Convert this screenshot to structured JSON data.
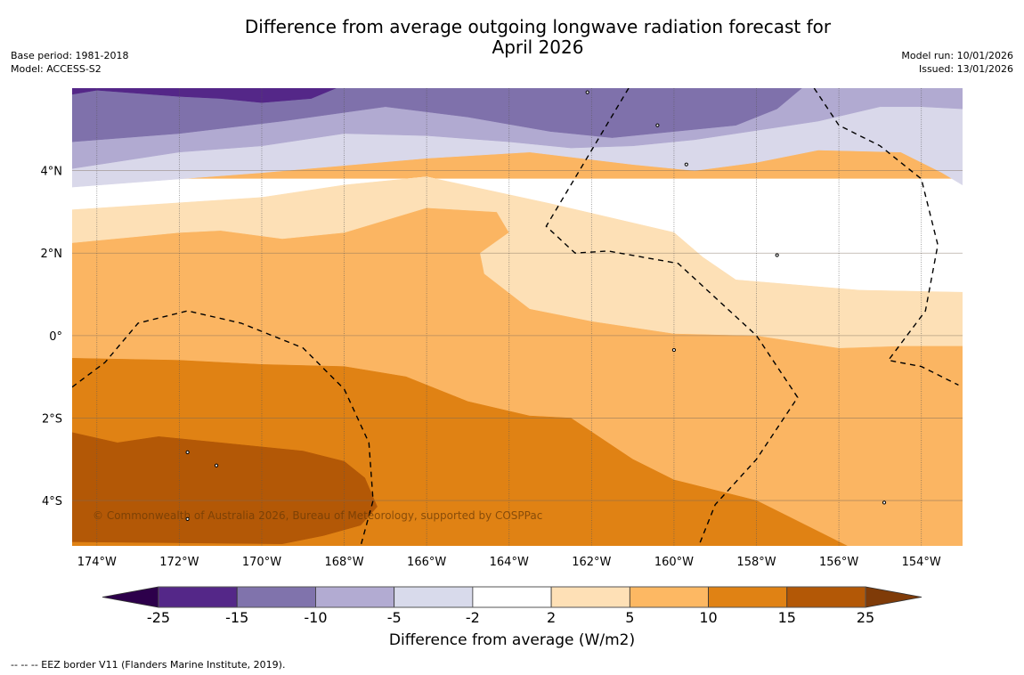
{
  "header": {
    "title_line1": "Difference from average outgoing longwave radiation forecast for",
    "title_line2": "April 2026",
    "base_period": "Base period: 1981-2018",
    "model": "Model: ACCESS-S2",
    "model_run": "Model run: 10/01/2026",
    "issued": "Issued: 13/01/2026"
  },
  "map": {
    "extent": {
      "lon_min": -174.6,
      "lon_max": -153.0,
      "lat_min": -5.1,
      "lat_max": 6.0
    },
    "lon_ticks": [
      -174,
      -172,
      -170,
      -168,
      -166,
      -164,
      -162,
      -160,
      -158,
      -156,
      -154
    ],
    "lon_tick_labels": [
      "174°W",
      "172°W",
      "170°W",
      "168°W",
      "166°W",
      "164°W",
      "162°W",
      "160°W",
      "158°W",
      "156°W",
      "154°W"
    ],
    "lat_ticks": [
      4,
      2,
      0,
      -2,
      -4
    ],
    "lat_tick_labels": [
      "4°N",
      "2°N",
      "0°",
      "2°S",
      "4°S"
    ],
    "copyright": "© Commonwealth of Australia 2026, Bureau of Meteorology, supported by COSPPac",
    "background_color": "#fbb562",
    "contours": [
      {
        "level": "-2 to 2",
        "color": "#ffffff",
        "points": [
          [
            -174.6,
            3.8
          ],
          [
            -153.0,
            3.8
          ],
          [
            -153.0,
            1.05
          ],
          [
            -155.5,
            1.1
          ],
          [
            -158.5,
            1.35
          ],
          [
            -159.3,
            1.9
          ],
          [
            -160.0,
            2.5
          ],
          [
            -163.0,
            3.2
          ],
          [
            -166.0,
            3.85
          ],
          [
            -168.0,
            3.65
          ],
          [
            -170.0,
            3.35
          ],
          [
            -174.6,
            3.05
          ]
        ]
      },
      {
        "level": "-5 to -2",
        "color": "#d9d8ea",
        "points": [
          [
            -174.6,
            6.0
          ],
          [
            -153.0,
            6.0
          ],
          [
            -153.0,
            3.65
          ],
          [
            -153.5,
            3.95
          ],
          [
            -154.5,
            4.45
          ],
          [
            -156.5,
            4.5
          ],
          [
            -158.0,
            4.2
          ],
          [
            -159.5,
            4.0
          ],
          [
            -161.0,
            4.15
          ],
          [
            -163.5,
            4.45
          ],
          [
            -166.0,
            4.3
          ],
          [
            -170.0,
            3.95
          ],
          [
            -174.6,
            3.6
          ]
        ]
      },
      {
        "level": "-10 to -5",
        "color": "#b1aad1",
        "points": [
          [
            -174.6,
            6.0
          ],
          [
            -153.0,
            6.0
          ],
          [
            -153.0,
            5.5
          ],
          [
            -154.0,
            5.55
          ],
          [
            -155.0,
            5.55
          ],
          [
            -156.5,
            5.2
          ],
          [
            -157.5,
            5.05
          ],
          [
            -159.5,
            4.75
          ],
          [
            -161.0,
            4.6
          ],
          [
            -162.5,
            4.55
          ],
          [
            -164.0,
            4.7
          ],
          [
            -166.0,
            4.85
          ],
          [
            -168.0,
            4.9
          ],
          [
            -170.0,
            4.6
          ],
          [
            -172.0,
            4.45
          ],
          [
            -174.6,
            4.05
          ]
        ]
      },
      {
        "level": "-15 to -10",
        "color": "#7f71ab",
        "points": [
          [
            -174.6,
            6.0
          ],
          [
            -156.9,
            6.0
          ],
          [
            -157.5,
            5.5
          ],
          [
            -158.5,
            5.1
          ],
          [
            -161.5,
            4.8
          ],
          [
            -163.0,
            4.95
          ],
          [
            -165.0,
            5.3
          ],
          [
            -167.0,
            5.55
          ],
          [
            -169.5,
            5.2
          ],
          [
            -172.0,
            4.9
          ],
          [
            -174.6,
            4.7
          ]
        ]
      },
      {
        "level": "-25 to -15",
        "color": "#542788",
        "points": [
          [
            -174.6,
            6.0
          ],
          [
            -168.2,
            6.0
          ],
          [
            -168.8,
            5.75
          ],
          [
            -170.0,
            5.65
          ],
          [
            -171.0,
            5.75
          ],
          [
            -172.0,
            5.8
          ],
          [
            -174.0,
            5.95
          ],
          [
            -174.6,
            5.85
          ]
        ]
      },
      {
        "level": "2 to 5",
        "color": "#fde0b6",
        "points": [
          [
            -174.6,
            3.05
          ],
          [
            -170.0,
            3.35
          ],
          [
            -168.0,
            3.65
          ],
          [
            -166.0,
            3.85
          ],
          [
            -163.0,
            3.2
          ],
          [
            -160.0,
            2.5
          ],
          [
            -159.3,
            1.9
          ],
          [
            -158.5,
            1.35
          ],
          [
            -155.5,
            1.1
          ],
          [
            -153.0,
            1.05
          ],
          [
            -153.0,
            -0.25
          ],
          [
            -154.5,
            -0.25
          ],
          [
            -156.0,
            -0.3
          ],
          [
            -158.0,
            0.0
          ],
          [
            -160.0,
            0.05
          ],
          [
            -162.0,
            0.35
          ],
          [
            -163.5,
            0.65
          ],
          [
            -164.6,
            1.5
          ],
          [
            -164.7,
            2.0
          ],
          [
            -164.0,
            2.5
          ],
          [
            -164.3,
            3.0
          ],
          [
            -166.0,
            3.1
          ],
          [
            -168.0,
            2.5
          ],
          [
            -169.5,
            2.35
          ],
          [
            -171.0,
            2.55
          ],
          [
            -172.0,
            2.5
          ],
          [
            -174.6,
            2.25
          ]
        ]
      },
      {
        "level": "10 to 15",
        "color": "#e08214",
        "points": [
          [
            -174.6,
            -0.55
          ],
          [
            -172.0,
            -0.6
          ],
          [
            -170.0,
            -0.7
          ],
          [
            -168.0,
            -0.75
          ],
          [
            -166.5,
            -1.0
          ],
          [
            -165.0,
            -1.6
          ],
          [
            -163.5,
            -1.95
          ],
          [
            -162.5,
            -2.0
          ],
          [
            -161.0,
            -3.0
          ],
          [
            -160.0,
            -3.5
          ],
          [
            -158.0,
            -4.0
          ],
          [
            -157.0,
            -4.5
          ],
          [
            -155.8,
            -5.1
          ],
          [
            -174.6,
            -5.1
          ]
        ]
      },
      {
        "level": "15 to 25",
        "color": "#b35806",
        "points": [
          [
            -174.6,
            -2.35
          ],
          [
            -173.5,
            -2.6
          ],
          [
            -172.5,
            -2.45
          ],
          [
            -171.0,
            -2.6
          ],
          [
            -169.0,
            -2.8
          ],
          [
            -168.0,
            -3.05
          ],
          [
            -167.5,
            -3.45
          ],
          [
            -167.2,
            -4.15
          ],
          [
            -167.6,
            -4.6
          ],
          [
            -168.5,
            -4.85
          ],
          [
            -169.5,
            -5.05
          ],
          [
            -174.6,
            -5.0
          ]
        ]
      }
    ],
    "eez_lines": [
      [
        [
          -174.6,
          -1.25
        ],
        [
          -173.8,
          -0.65
        ],
        [
          -173.0,
          0.3
        ],
        [
          -171.8,
          0.6
        ],
        [
          -170.5,
          0.3
        ],
        [
          -169.0,
          -0.3
        ],
        [
          -168.0,
          -1.3
        ],
        [
          -167.4,
          -2.6
        ],
        [
          -167.3,
          -4.0
        ],
        [
          -167.6,
          -5.1
        ]
      ],
      [
        [
          -161.1,
          6.0
        ],
        [
          -163.1,
          2.65
        ],
        [
          -162.4,
          2.0
        ],
        [
          -161.6,
          2.05
        ],
        [
          -159.9,
          1.75
        ],
        [
          -158.0,
          0.0
        ],
        [
          -157.0,
          -1.5
        ],
        [
          -158.0,
          -3.0
        ],
        [
          -159.0,
          -4.1
        ],
        [
          -159.4,
          -5.1
        ]
      ],
      [
        [
          -156.6,
          6.0
        ],
        [
          -156.0,
          5.1
        ],
        [
          -155.0,
          4.6
        ],
        [
          -154.0,
          3.8
        ],
        [
          -153.6,
          2.2
        ],
        [
          -153.9,
          0.6
        ],
        [
          -154.8,
          -0.6
        ],
        [
          -154.0,
          -0.75
        ],
        [
          -153.1,
          -1.2
        ]
      ]
    ],
    "islands": [
      {
        "lon": -171.8,
        "lat": -2.83
      },
      {
        "lon": -171.1,
        "lat": -3.15
      },
      {
        "lon": -171.8,
        "lat": -4.45
      },
      {
        "lon": -159.7,
        "lat": 4.15
      },
      {
        "lon": -157.5,
        "lat": 1.95
      },
      {
        "lon": -160.0,
        "lat": -0.35
      },
      {
        "lon": -154.9,
        "lat": -4.05
      },
      {
        "lon": -162.1,
        "lat": 5.9
      },
      {
        "lon": -160.4,
        "lat": 5.1
      }
    ]
  },
  "colorbar": {
    "label": "Difference from average (W/m2)",
    "ticks": [
      "-25",
      "-15",
      "-10",
      "-5",
      "-2",
      "2",
      "5",
      "10",
      "15",
      "25"
    ],
    "low_extend_color": "#2d004b",
    "high_extend_color": "#7f3b08",
    "bins": [
      {
        "from": -25,
        "to": -15,
        "color": "#542788"
      },
      {
        "from": -15,
        "to": -10,
        "color": "#8073ac"
      },
      {
        "from": -10,
        "to": -5,
        "color": "#b2abd2"
      },
      {
        "from": -5,
        "to": -2,
        "color": "#d8daeb"
      },
      {
        "from": -2,
        "to": 2,
        "color": "#ffffff"
      },
      {
        "from": 2,
        "to": 5,
        "color": "#fee0b6"
      },
      {
        "from": 5,
        "to": 10,
        "color": "#fdb863"
      },
      {
        "from": 10,
        "to": 15,
        "color": "#e08214"
      },
      {
        "from": 15,
        "to": 25,
        "color": "#b35806"
      }
    ]
  },
  "footer": {
    "eez_note": "--  --  -- EEZ border V11 (Flanders Marine Institute, 2019)."
  }
}
